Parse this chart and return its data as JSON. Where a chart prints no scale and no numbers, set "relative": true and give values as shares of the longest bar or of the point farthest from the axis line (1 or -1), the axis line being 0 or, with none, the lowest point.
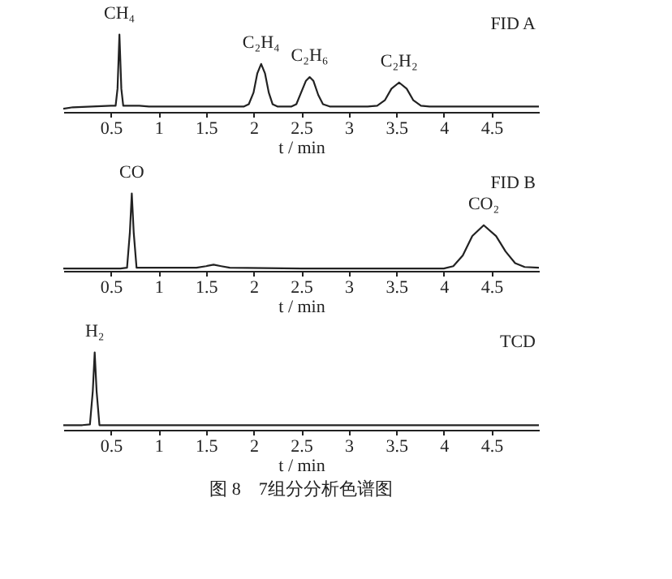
{
  "chart_data": [
    {
      "type": "line",
      "relative": true,
      "xlabel": "t / min",
      "xlim": [
        0,
        5
      ],
      "xticks": [
        0.5,
        1,
        1.5,
        2,
        2.5,
        3,
        3.5,
        4,
        4.5
      ],
      "grid": false,
      "marker": "none",
      "line_style": "solid",
      "series": [
        {
          "color": "#222222",
          "x": [
            0,
            0.1,
            0.3,
            0.5,
            0.55,
            0.57,
            0.59,
            0.61,
            0.63,
            0.7,
            0.8,
            0.9,
            1.5,
            1.9,
            1.95,
            2.0,
            2.04,
            2.08,
            2.12,
            2.16,
            2.2,
            2.25,
            2.3,
            2.4,
            2.45,
            2.5,
            2.55,
            2.59,
            2.63,
            2.68,
            2.73,
            2.8,
            3.2,
            3.3,
            3.38,
            3.45,
            3.53,
            3.61,
            3.68,
            3.76,
            3.85,
            4.5,
            5
          ],
          "values": [
            0.04,
            0.06,
            0.07,
            0.08,
            0.08,
            0.3,
            1,
            0.3,
            0.08,
            0.08,
            0.08,
            0.07,
            0.07,
            0.07,
            0.1,
            0.25,
            0.5,
            0.62,
            0.5,
            0.25,
            0.1,
            0.07,
            0.07,
            0.07,
            0.1,
            0.25,
            0.4,
            0.45,
            0.4,
            0.22,
            0.1,
            0.07,
            0.07,
            0.08,
            0.15,
            0.3,
            0.38,
            0.3,
            0.15,
            0.08,
            0.07,
            0.07,
            0.07
          ]
        }
      ],
      "annotations": [
        {
          "text": "CH₄",
          "x": 0.59,
          "y": 1
        },
        {
          "text": "C₂H₄",
          "x": 2.08,
          "y": 0.62
        },
        {
          "text": "C₂H₆",
          "x": 2.59,
          "y": 0.45
        },
        {
          "text": "C₂H₂",
          "x": 3.53,
          "y": 0.38
        },
        "FID A"
      ]
    },
    {
      "type": "line",
      "relative": true,
      "xlabel": "t / min",
      "xlim": [
        0,
        5
      ],
      "xticks": [
        0.5,
        1,
        1.5,
        2,
        2.5,
        3,
        3.5,
        4,
        4.5
      ],
      "grid": false,
      "marker": "none",
      "line_style": "solid",
      "series": [
        {
          "color": "#222222",
          "x": [
            0,
            0.6,
            0.67,
            0.7,
            0.72,
            0.74,
            0.77,
            0.85,
            1.4,
            1.5,
            1.58,
            1.66,
            1.75,
            2.5,
            4.0,
            4.1,
            4.2,
            4.3,
            4.42,
            4.55,
            4.65,
            4.75,
            4.85,
            5
          ],
          "values": [
            0.03,
            0.03,
            0.04,
            0.5,
            1,
            0.5,
            0.04,
            0.04,
            0.04,
            0.06,
            0.08,
            0.06,
            0.04,
            0.03,
            0.03,
            0.06,
            0.2,
            0.45,
            0.59,
            0.45,
            0.25,
            0.1,
            0.05,
            0.04
          ]
        }
      ],
      "annotations": [
        {
          "text": "CO",
          "x": 0.72,
          "y": 1
        },
        {
          "text": "CO₂",
          "x": 4.42,
          "y": 0.59
        },
        "FID B"
      ]
    },
    {
      "type": "line",
      "relative": true,
      "title": "图 8　7组分分析色谱图",
      "xlabel": "t / min",
      "xlim": [
        0,
        5
      ],
      "xticks": [
        0.5,
        1,
        1.5,
        2,
        2.5,
        3,
        3.5,
        4,
        4.5
      ],
      "grid": false,
      "marker": "none",
      "line_style": "solid",
      "series": [
        {
          "color": "#222222",
          "x": [
            0,
            0.2,
            0.28,
            0.31,
            0.33,
            0.35,
            0.38,
            0.5,
            5
          ],
          "values": [
            0.06,
            0.06,
            0.07,
            0.5,
            1,
            0.5,
            0.06,
            0.06,
            0.06
          ]
        }
      ],
      "annotations": [
        {
          "text": "H₂",
          "x": 0.33,
          "y": 1
        },
        "TCD"
      ]
    }
  ]
}
